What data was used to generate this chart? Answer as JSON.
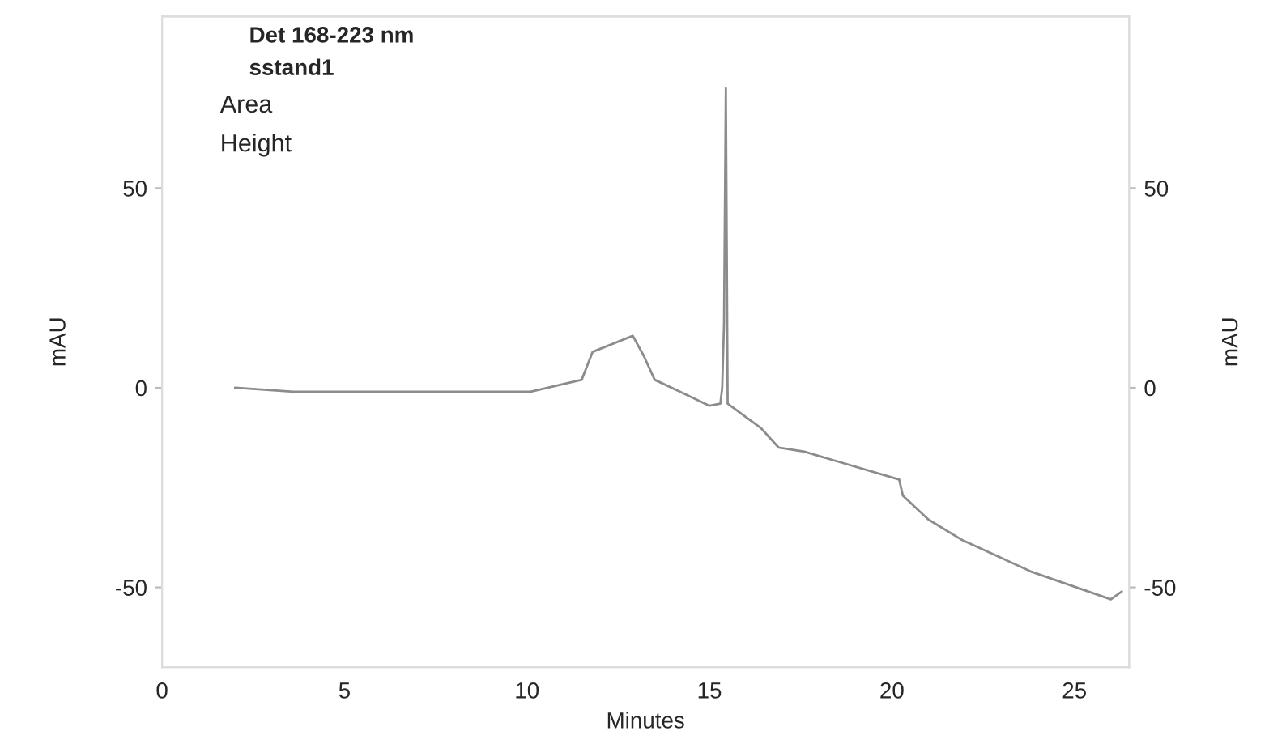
{
  "chart_data": {
    "type": "line",
    "title": "Det 168-223 nm",
    "subtitle": "sstand1",
    "xlabel": "Minutes",
    "ylabel": "mAU",
    "y2label": "mAU",
    "annotations": [
      "Area",
      "Height"
    ],
    "x": [
      2,
      3.6,
      10.1,
      11.5,
      11.8,
      12.9,
      13.2,
      13.5,
      14.2,
      15,
      15.3,
      15.35,
      15.4,
      15.45,
      15.5,
      16.4,
      16.9,
      17.6,
      20.2,
      20.3,
      21,
      21.9,
      23.8,
      26,
      26.3
    ],
    "series": [
      {
        "color": "#8c8c8c",
        "values": [
          0,
          -1,
          -1,
          2,
          9,
          13,
          8,
          2,
          -1,
          -4.5,
          -4,
          0,
          16,
          75,
          -4,
          -10,
          -15,
          -16,
          -23,
          -27,
          -33,
          -38,
          -46,
          -53,
          -51
        ]
      }
    ],
    "xlim": [
      0,
      26.5
    ],
    "xticks": [
      0,
      5,
      10,
      15,
      20,
      25
    ],
    "ylim": [
      -70,
      93
    ],
    "yticks": [
      -50,
      0,
      50
    ],
    "y2lim": [
      -70,
      93
    ],
    "y2ticks": [
      -50,
      0,
      50
    ],
    "grid": false,
    "legend": false
  }
}
